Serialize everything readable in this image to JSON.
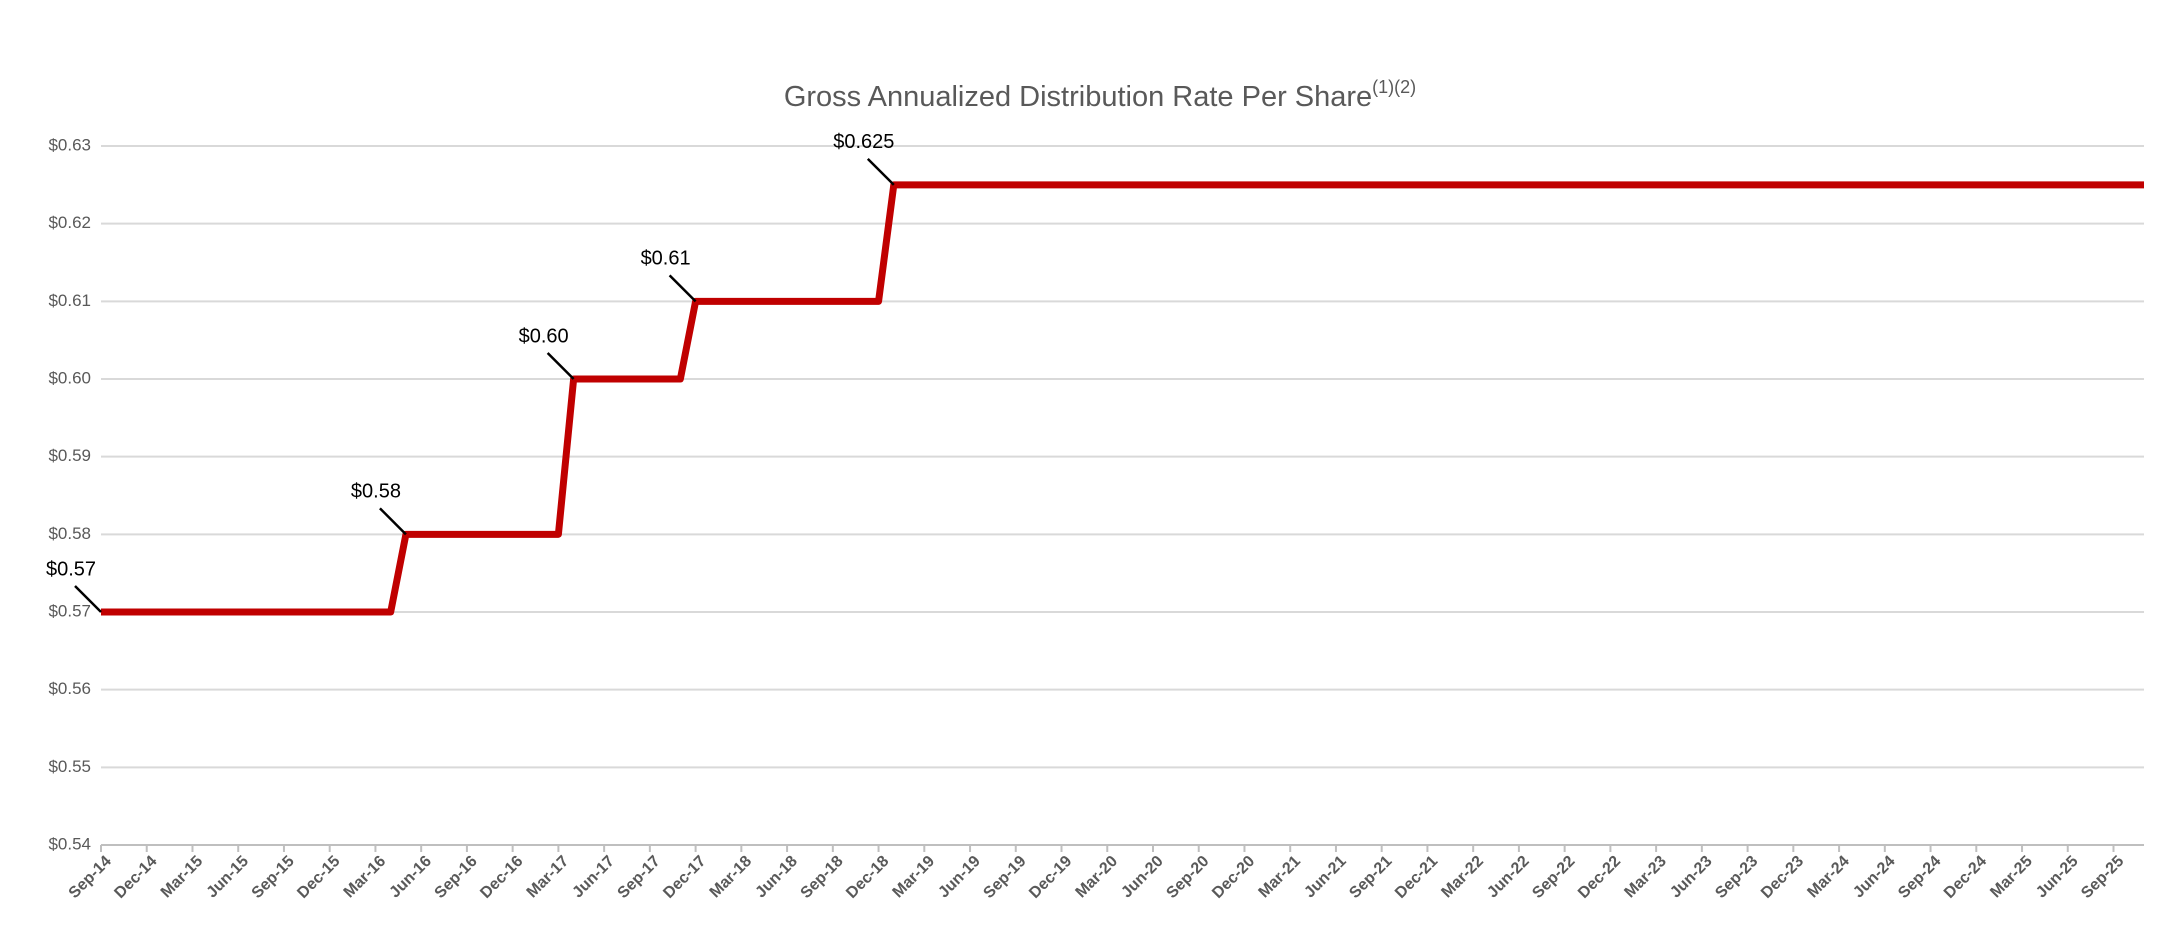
{
  "chart_data": {
    "type": "line",
    "title": "Gross Annualized Distribution Rate Per Share",
    "title_superscript": "(1)(2)",
    "categories": [
      "Sep-14",
      null,
      null,
      "Dec-14",
      null,
      null,
      "Mar-15",
      null,
      null,
      "Jun-15",
      null,
      null,
      "Sep-15",
      null,
      null,
      "Dec-15",
      null,
      null,
      "Mar-16",
      null,
      null,
      "Jun-16",
      null,
      null,
      "Sep-16",
      null,
      null,
      "Dec-16",
      null,
      null,
      "Mar-17",
      null,
      null,
      "Jun-17",
      null,
      null,
      "Sep-17",
      null,
      null,
      "Dec-17",
      null,
      null,
      "Mar-18",
      null,
      null,
      "Jun-18",
      null,
      null,
      "Sep-18",
      null,
      null,
      "Dec-18",
      null,
      null,
      "Mar-19",
      null,
      null,
      "Jun-19",
      null,
      null,
      "Sep-19",
      null,
      null,
      "Dec-19",
      null,
      null,
      "Mar-20",
      null,
      null,
      "Jun-20",
      null,
      null,
      "Sep-20",
      null,
      null,
      "Dec-20",
      null,
      null,
      "Mar-21",
      null,
      null,
      "Jun-21",
      null,
      null,
      "Sep-21",
      null,
      null,
      "Dec-21",
      null,
      null,
      "Mar-22",
      null,
      null,
      "Jun-22",
      null,
      null,
      "Sep-22",
      null,
      null,
      "Dec-22",
      null,
      null,
      "Mar-23",
      null,
      null,
      "Jun-23",
      null,
      null,
      "Sep-23",
      null,
      null,
      "Dec-23",
      null,
      null,
      "Mar-24",
      null,
      null,
      "Jun-24",
      null,
      null,
      "Sep-24",
      null,
      null,
      "Dec-24",
      null,
      null,
      "Mar-25",
      null,
      null,
      "Jun-25",
      null,
      null,
      "Sep-25",
      null,
      null
    ],
    "values": [
      0.57,
      0.57,
      0.57,
      0.57,
      0.57,
      0.57,
      0.57,
      0.57,
      0.57,
      0.57,
      0.57,
      0.57,
      0.57,
      0.57,
      0.57,
      0.57,
      0.57,
      0.57,
      0.57,
      0.57,
      0.58,
      0.58,
      0.58,
      0.58,
      0.58,
      0.58,
      0.58,
      0.58,
      0.58,
      0.58,
      0.58,
      0.6,
      0.6,
      0.6,
      0.6,
      0.6,
      0.6,
      0.6,
      0.6,
      0.61,
      0.61,
      0.61,
      0.61,
      0.61,
      0.61,
      0.61,
      0.61,
      0.61,
      0.61,
      0.61,
      0.61,
      0.61,
      0.625,
      0.625,
      0.625,
      0.625,
      0.625,
      0.625,
      0.625,
      0.625,
      0.625,
      0.625,
      0.625,
      0.625,
      0.625,
      0.625,
      0.625,
      0.625,
      0.625,
      0.625,
      0.625,
      0.625,
      0.625,
      0.625,
      0.625,
      0.625,
      0.625,
      0.625,
      0.625,
      0.625,
      0.625,
      0.625,
      0.625,
      0.625,
      0.625,
      0.625,
      0.625,
      0.625,
      0.625,
      0.625,
      0.625,
      0.625,
      0.625,
      0.625,
      0.625,
      0.625,
      0.625,
      0.625,
      0.625,
      0.625,
      0.625,
      0.625,
      0.625,
      0.625,
      0.625,
      0.625,
      0.625,
      0.625,
      0.625,
      0.625,
      0.625,
      0.625,
      0.625,
      0.625,
      0.625,
      0.625,
      0.625,
      0.625,
      0.625,
      0.625,
      0.625,
      0.625,
      0.625,
      0.625,
      0.625,
      0.625,
      0.625,
      0.625,
      0.625,
      0.625,
      0.625,
      0.625,
      0.625,
      0.625,
      0.625
    ],
    "value_labels": [
      "$0.57",
      null,
      null,
      null,
      null,
      null,
      null,
      null,
      null,
      null,
      null,
      null,
      null,
      null,
      null,
      null,
      null,
      null,
      null,
      null,
      "$0.58",
      null,
      null,
      null,
      null,
      null,
      null,
      null,
      null,
      null,
      null,
      "$0.60",
      null,
      null,
      null,
      null,
      null,
      null,
      null,
      "$0.61",
      null,
      null,
      null,
      null,
      null,
      null,
      null,
      null,
      null,
      null,
      null,
      null,
      "$0.625",
      null,
      null,
      null,
      null,
      null,
      null,
      null,
      null,
      null,
      null,
      null,
      null,
      null,
      null,
      null,
      null,
      null,
      null,
      null,
      null,
      null,
      null,
      null,
      null,
      null,
      null,
      null,
      null,
      null,
      null,
      null,
      null,
      null,
      null,
      null,
      null,
      null,
      null,
      null,
      null,
      null,
      null,
      null,
      null,
      null,
      null,
      null,
      null,
      null,
      null,
      null,
      null,
      null,
      null,
      null,
      null,
      null,
      null,
      null,
      null,
      null,
      null,
      null,
      null,
      null,
      null,
      null,
      null,
      null,
      null,
      null,
      null,
      null,
      null,
      null,
      null,
      null,
      null,
      null,
      null,
      null,
      null
    ],
    "color": "#c00000",
    "ylim": [
      0.54,
      0.63
    ],
    "yticks": [
      {
        "value": 0.54,
        "label": "$0.54"
      },
      {
        "value": 0.55,
        "label": "$0.55"
      },
      {
        "value": 0.56,
        "label": "$0.56"
      },
      {
        "value": 0.57,
        "label": "$0.57"
      },
      {
        "value": 0.58,
        "label": "$0.58"
      },
      {
        "value": 0.59,
        "label": "$0.59"
      },
      {
        "value": 0.6,
        "label": "$0.60"
      },
      {
        "value": 0.61,
        "label": "$0.61"
      },
      {
        "value": 0.62,
        "label": "$0.62"
      },
      {
        "value": 0.63,
        "label": "$0.63"
      }
    ],
    "grid": true
  }
}
